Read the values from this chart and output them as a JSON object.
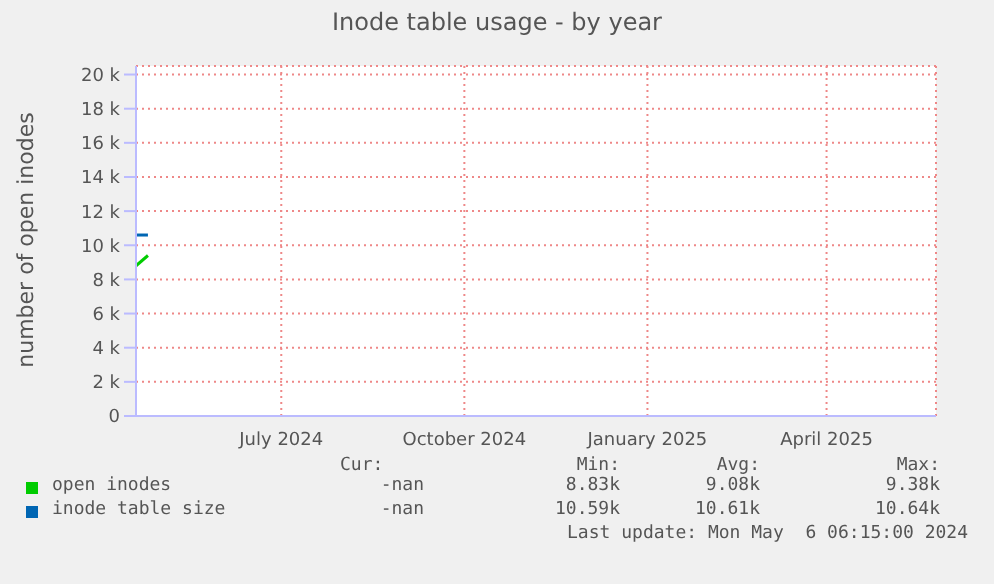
{
  "chart_data": {
    "type": "line",
    "title": "Inode table usage - by year",
    "ylabel": "number of open inodes",
    "x": [
      "2024-05-04",
      "2024-05-10"
    ],
    "series": [
      {
        "name": "open inodes",
        "color": "#00cc00",
        "values": [
          8800,
          9400
        ]
      },
      {
        "name": "inode table size",
        "color": "#0066b3",
        "values": [
          10600,
          10600
        ]
      }
    ],
    "xlim": [
      "2024-05-04",
      "2025-06-10"
    ],
    "xticks": [
      {
        "value": "2024-07-16",
        "label": "July 2024"
      },
      {
        "value": "2024-10-16",
        "label": "October 2024"
      },
      {
        "value": "2025-01-16",
        "label": "January 2025"
      },
      {
        "value": "2025-04-16",
        "label": "April 2025"
      }
    ],
    "ylim": [
      0,
      20500
    ],
    "yticks": [
      0,
      {
        "value": 2000,
        "label": "2 k"
      },
      {
        "value": 4000,
        "label": "4 k"
      },
      {
        "value": 6000,
        "label": "6 k"
      },
      {
        "value": 8000,
        "label": "8 k"
      },
      {
        "value": 10000,
        "label": "10 k"
      },
      {
        "value": 12000,
        "label": "12 k"
      },
      {
        "value": 14000,
        "label": "14 k"
      },
      {
        "value": 16000,
        "label": "16 k"
      },
      {
        "value": 18000,
        "label": "18 k"
      },
      {
        "value": 20000,
        "label": "20 k"
      }
    ],
    "grid": true,
    "legend": "bottom",
    "annotations": [
      "Cur:",
      "Min:",
      "Avg:",
      "Max:",
      "-nan",
      "8.83k",
      "9.08k",
      "9.38k",
      "-nan",
      "10.59k",
      "10.61k",
      "10.64k",
      "Last update: Mon May  6 06:15:00 2024"
    ]
  }
}
